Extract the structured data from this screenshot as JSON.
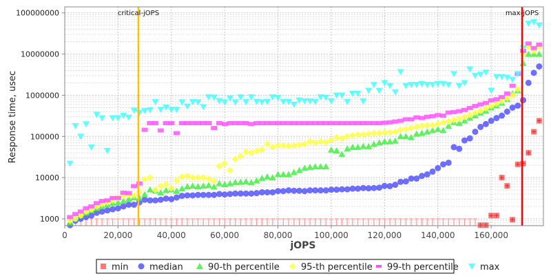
{
  "chart_data": {
    "type": "scatter",
    "xlabel": "jOPS",
    "ylabel": "Response time, usec",
    "xlim": [
      0,
      179600
    ],
    "ylim": [
      680,
      140000000
    ],
    "yscale": "log",
    "grid": true,
    "legend_position": "bottom",
    "x_ticks": [
      "0",
      "20,000",
      "40,000",
      "60,000",
      "80,000",
      "100,000",
      "120,000",
      "140,000",
      "160,000"
    ],
    "y_ticks": [
      "1000",
      "10000",
      "100000",
      "1000000",
      "10000000",
      "100000000"
    ],
    "markers": [
      {
        "label": "critical-jOPS",
        "x": 27650,
        "color": "#ffc000"
      },
      {
        "label": "max-jOPS",
        "x": 171600,
        "color": "#ff0000"
      }
    ],
    "x": [
      2000,
      4000,
      6000,
      8000,
      10000,
      12000,
      14000,
      16000,
      18000,
      20000,
      22000,
      24000,
      26000,
      28000,
      30000,
      32000,
      34000,
      36000,
      38000,
      40000,
      42000,
      44000,
      46000,
      48000,
      50000,
      52000,
      54000,
      56000,
      58000,
      60000,
      62000,
      64000,
      66000,
      68000,
      70000,
      72000,
      74000,
      76000,
      78000,
      80000,
      82000,
      84000,
      86000,
      88000,
      90000,
      92000,
      94000,
      96000,
      98000,
      100000,
      102000,
      104000,
      106000,
      108000,
      110000,
      112000,
      114000,
      116000,
      118000,
      120000,
      122000,
      124000,
      126000,
      128000,
      130000,
      132000,
      134000,
      136000,
      138000,
      140000,
      142000,
      144000,
      146000,
      148000,
      150000,
      152000,
      154000,
      156000,
      158000,
      160000,
      162000,
      164000,
      166000,
      168000,
      170000,
      172000,
      174000,
      176000,
      178000
    ],
    "series": [
      {
        "name": "min",
        "color": "#ff5555",
        "marker": "square",
        "values": [
          500,
          500,
          500,
          500,
          500,
          500,
          500,
          500,
          500,
          500,
          500,
          500,
          500,
          500,
          500,
          500,
          500,
          500,
          500,
          500,
          500,
          500,
          500,
          500,
          500,
          500,
          500,
          500,
          500,
          500,
          500,
          500,
          500,
          500,
          500,
          500,
          500,
          500,
          500,
          500,
          500,
          500,
          500,
          500,
          500,
          500,
          500,
          500,
          500,
          500,
          500,
          500,
          500,
          500,
          500,
          500,
          500,
          500,
          500,
          500,
          500,
          500,
          500,
          500,
          500,
          500,
          500,
          500,
          500,
          500,
          500,
          500,
          500,
          500,
          500,
          500,
          500,
          700,
          700,
          1200,
          1200,
          10000,
          6300,
          950,
          21000,
          22000,
          40000,
          130000,
          240000
        ]
      },
      {
        "name": "median",
        "color": "#5555ff",
        "marker": "circle",
        "values": [
          700,
          900,
          1000,
          1100,
          1200,
          1400,
          1500,
          1600,
          1700,
          1800,
          2000,
          2200,
          2200,
          2500,
          2900,
          2800,
          2800,
          2900,
          3100,
          3000,
          3300,
          3600,
          3700,
          3700,
          3800,
          3800,
          3800,
          3800,
          4000,
          3900,
          4000,
          4100,
          4100,
          4100,
          4100,
          4200,
          4400,
          4400,
          4400,
          4700,
          4700,
          4900,
          4800,
          4800,
          4700,
          4900,
          4900,
          4900,
          4900,
          5100,
          5100,
          5200,
          5200,
          5400,
          5400,
          5600,
          5500,
          5600,
          5700,
          6300,
          6200,
          6700,
          7900,
          8100,
          9500,
          9500,
          11000,
          12000,
          14000,
          17000,
          21000,
          23000,
          55000,
          50000,
          80000,
          90000,
          130000,
          170000,
          200000,
          240000,
          280000,
          320000,
          400000,
          500000,
          560000,
          760000,
          2000000,
          3500000,
          5000000
        ]
      },
      {
        "name": "90-th percentile",
        "color": "#44ee44",
        "marker": "triangle-up",
        "values": [
          800,
          1000,
          1200,
          1400,
          1600,
          1800,
          2000,
          2200,
          2400,
          2500,
          2700,
          3000,
          3300,
          3200,
          3900,
          5100,
          4800,
          4300,
          4900,
          5100,
          4700,
          5400,
          6100,
          6300,
          6100,
          6300,
          6500,
          6000,
          7200,
          6800,
          7200,
          7700,
          7800,
          8000,
          7600,
          8400,
          9700,
          10500,
          10000,
          12000,
          12000,
          12000,
          13500,
          15000,
          17000,
          18000,
          18500,
          18500,
          18500,
          47000,
          45000,
          37000,
          50000,
          55000,
          55000,
          58000,
          57000,
          65000,
          70000,
          75000,
          75000,
          78000,
          100000,
          100000,
          95000,
          115000,
          120000,
          130000,
          140000,
          150000,
          140000,
          180000,
          220000,
          210000,
          240000,
          280000,
          320000,
          370000,
          420000,
          500000,
          560000,
          650000,
          800000,
          1100000,
          1300000,
          6000000,
          10000000,
          10000000,
          10000000
        ]
      },
      {
        "name": "95-th percentile",
        "color": "#ffff44",
        "marker": "diamond",
        "values": [
          900,
          1000,
          1200,
          1500,
          1700,
          2000,
          2300,
          2500,
          2800,
          3200,
          3600,
          3800,
          3700,
          4500,
          9000,
          10000,
          5000,
          6200,
          6800,
          5500,
          8500,
          10500,
          11000,
          10000,
          10000,
          10000,
          9200,
          8200,
          19000,
          22000,
          15000,
          28000,
          33000,
          42000,
          40000,
          44000,
          48000,
          65000,
          55000,
          60000,
          60000,
          58000,
          60000,
          62000,
          65000,
          75000,
          70000,
          75000,
          72000,
          80000,
          95000,
          90000,
          100000,
          105000,
          110000,
          110000,
          115000,
          120000,
          120000,
          125000,
          125000,
          130000,
          145000,
          150000,
          160000,
          170000,
          180000,
          185000,
          185000,
          200000,
          220000,
          230000,
          250000,
          270000,
          300000,
          330000,
          380000,
          420000,
          480000,
          550000,
          630000,
          720000,
          850000,
          1000000,
          1400000,
          10000000,
          15000000,
          12000000,
          15000000
        ]
      },
      {
        "name": "99-th percentile",
        "color": "#ff55ff",
        "marker": "bar",
        "values": [
          1100,
          1300,
          1500,
          1800,
          2000,
          2400,
          2700,
          2800,
          3200,
          3200,
          4300,
          4200,
          6200,
          7200,
          145000,
          210000,
          210000,
          140000,
          210000,
          210000,
          120000,
          210000,
          210000,
          210000,
          210000,
          210000,
          210000,
          160000,
          210000,
          200000,
          210000,
          210000,
          210000,
          210000,
          200000,
          210000,
          210000,
          210000,
          210000,
          210000,
          210000,
          210000,
          210000,
          210000,
          210000,
          210000,
          210000,
          210000,
          210000,
          210000,
          210000,
          210000,
          210000,
          210000,
          210000,
          210000,
          210000,
          210000,
          210000,
          215000,
          220000,
          230000,
          240000,
          260000,
          260000,
          290000,
          280000,
          300000,
          310000,
          330000,
          320000,
          380000,
          390000,
          410000,
          440000,
          490000,
          550000,
          600000,
          650000,
          750000,
          800000,
          900000,
          1100000,
          1700000,
          3300000,
          12000000,
          18000000,
          14000000,
          17000000
        ]
      },
      {
        "name": "max",
        "color": "#44ffff",
        "marker": "triangle-down",
        "values": [
          22000,
          180000,
          100000,
          200000,
          55000,
          340000,
          280000,
          45000,
          280000,
          280000,
          320000,
          290000,
          430000,
          380000,
          420000,
          440000,
          690000,
          450000,
          510000,
          450000,
          450000,
          680000,
          540000,
          690000,
          680000,
          520000,
          900000,
          890000,
          730000,
          680000,
          850000,
          680000,
          900000,
          690000,
          900000,
          700000,
          680000,
          700000,
          900000,
          880000,
          700000,
          700000,
          600000,
          750000,
          720000,
          720000,
          700000,
          900000,
          880000,
          720000,
          1000000,
          1000000,
          700000,
          1100000,
          1100000,
          720000,
          1300000,
          1800000,
          1300000,
          2000000,
          1700000,
          1200000,
          3700000,
          1700000,
          1800000,
          1800000,
          1900000,
          1800000,
          1800000,
          1900000,
          1900000,
          1800000,
          3300000,
          1700000,
          2000000,
          4300000,
          3000000,
          3200000,
          3600000,
          1300000,
          2800000,
          2800000,
          2700000,
          2400000,
          3300000,
          14000000,
          55000000,
          60000000,
          50000000
        ]
      }
    ]
  }
}
